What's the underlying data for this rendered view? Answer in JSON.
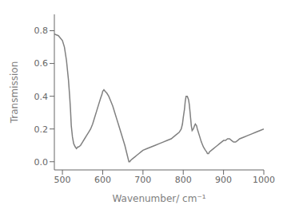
{
  "chart_data": {
    "type": "line",
    "xlabel": "Wavenumber/ cm⁻¹",
    "ylabel": "Transmission",
    "color": "#808080",
    "xlim": [
      480,
      1000
    ],
    "ylim": [
      -0.05,
      0.9
    ],
    "xticks": [
      500,
      600,
      700,
      800,
      900,
      1000
    ],
    "yticks": [
      {
        "value": 0.0,
        "label": "0.0"
      },
      0.2,
      0.4,
      0.6,
      0.8
    ],
    "x": [
      480,
      490,
      500,
      505,
      510,
      515,
      518,
      520,
      522,
      525,
      528,
      532,
      535,
      538,
      540,
      545,
      550,
      555,
      560,
      565,
      570,
      575,
      580,
      585,
      590,
      595,
      598,
      600,
      603,
      606,
      610,
      615,
      620,
      625,
      630,
      635,
      640,
      645,
      650,
      655,
      660,
      663,
      665,
      667,
      670,
      675,
      680,
      685,
      690,
      695,
      700,
      710,
      720,
      730,
      740,
      750,
      760,
      770,
      780,
      790,
      795,
      798,
      800,
      803,
      805,
      807,
      810,
      813,
      815,
      817,
      820,
      822,
      825,
      828,
      830,
      833,
      835,
      840,
      845,
      850,
      855,
      858,
      860,
      863,
      865,
      870,
      875,
      880,
      885,
      890,
      895,
      900,
      905,
      910,
      915,
      920,
      925,
      930,
      935,
      940,
      950,
      960,
      970,
      980,
      990,
      1000
    ],
    "values": [
      0.78,
      0.77,
      0.74,
      0.7,
      0.62,
      0.5,
      0.4,
      0.32,
      0.22,
      0.15,
      0.11,
      0.09,
      0.08,
      0.09,
      0.09,
      0.1,
      0.12,
      0.14,
      0.16,
      0.18,
      0.2,
      0.23,
      0.27,
      0.31,
      0.35,
      0.39,
      0.41,
      0.43,
      0.44,
      0.43,
      0.42,
      0.4,
      0.37,
      0.34,
      0.3,
      0.26,
      0.22,
      0.18,
      0.14,
      0.1,
      0.05,
      0.02,
      0.0,
      0.0,
      0.01,
      0.02,
      0.03,
      0.04,
      0.05,
      0.06,
      0.07,
      0.08,
      0.09,
      0.1,
      0.11,
      0.12,
      0.13,
      0.14,
      0.16,
      0.18,
      0.2,
      0.23,
      0.27,
      0.32,
      0.37,
      0.4,
      0.4,
      0.38,
      0.35,
      0.3,
      0.22,
      0.19,
      0.2,
      0.22,
      0.23,
      0.22,
      0.2,
      0.16,
      0.12,
      0.09,
      0.07,
      0.06,
      0.05,
      0.05,
      0.06,
      0.07,
      0.08,
      0.09,
      0.1,
      0.11,
      0.12,
      0.13,
      0.13,
      0.14,
      0.14,
      0.13,
      0.12,
      0.12,
      0.13,
      0.14,
      0.15,
      0.16,
      0.17,
      0.18,
      0.19,
      0.2
    ]
  }
}
